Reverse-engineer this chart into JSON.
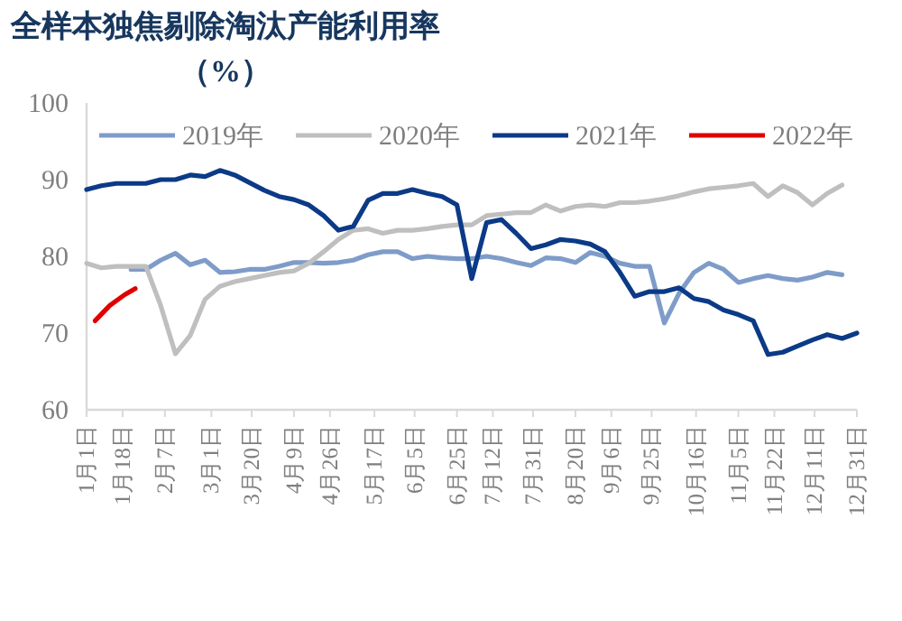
{
  "chart_data": {
    "type": "line",
    "title": "全样本独焦剔除淘汰产能利用率（%）",
    "x": [
      "--01-01",
      "--01-08",
      "--01-15",
      "--01-22",
      "--01-29",
      "--02-05",
      "--02-12",
      "--02-19",
      "--02-26",
      "--03-05",
      "--03-12",
      "--03-19",
      "--03-26",
      "--04-02",
      "--04-09",
      "--04-16",
      "--04-23",
      "--04-30",
      "--05-07",
      "--05-14",
      "--05-21",
      "--05-28",
      "--06-04",
      "--06-11",
      "--06-18",
      "--06-25",
      "--07-02",
      "--07-09",
      "--07-16",
      "--07-23",
      "--07-30",
      "--08-06",
      "--08-13",
      "--08-20",
      "--08-27",
      "--09-03",
      "--09-10",
      "--09-17",
      "--09-24",
      "--10-01",
      "--10-08",
      "--10-15",
      "--10-22",
      "--10-29",
      "--11-05",
      "--11-12",
      "--11-19",
      "--11-26",
      "--12-03",
      "--12-10",
      "--12-17",
      "--12-24",
      "--12-31"
    ],
    "series": [
      {
        "name": "2019年",
        "color": "#7f9cc9",
        "values": [
          null,
          null,
          null,
          78.3,
          78.3,
          79.5,
          80.4,
          78.9,
          79.5,
          77.9,
          78.0,
          78.3,
          78.3,
          78.7,
          79.2,
          79.2,
          79.1,
          79.2,
          79.5,
          80.2,
          80.6,
          80.6,
          79.7,
          80.0,
          79.8,
          79.7,
          79.7,
          80.0,
          79.7,
          79.2,
          78.8,
          79.8,
          79.7,
          79.2,
          80.5,
          80.0,
          79.1,
          78.7,
          78.7,
          71.3,
          75.2,
          77.9,
          79.1,
          78.3,
          76.6,
          77.1,
          77.5,
          77.1,
          76.9,
          77.3,
          77.9,
          77.6,
          null
        ]
      },
      {
        "name": "2020年",
        "color": "#bfbfbf",
        "values": [
          79.1,
          78.5,
          78.7,
          78.7,
          78.7,
          73.6,
          67.3,
          69.7,
          74.4,
          76.1,
          76.7,
          77.1,
          77.5,
          77.9,
          78.1,
          79.1,
          80.6,
          82.2,
          83.4,
          83.6,
          83.0,
          83.4,
          83.4,
          83.6,
          83.9,
          84.1,
          84.1,
          85.3,
          85.5,
          85.7,
          85.7,
          86.7,
          85.9,
          86.5,
          86.7,
          86.5,
          87.0,
          87.0,
          87.2,
          87.5,
          87.9,
          88.4,
          88.8,
          89.0,
          89.2,
          89.5,
          87.8,
          89.2,
          88.3,
          86.7,
          88.2,
          89.3,
          null
        ]
      },
      {
        "name": "2021年",
        "color": "#0b3a87",
        "values": [
          88.7,
          89.2,
          89.5,
          89.5,
          89.5,
          90.0,
          90.0,
          90.6,
          90.4,
          91.2,
          90.6,
          89.6,
          88.6,
          87.8,
          87.4,
          86.7,
          85.3,
          83.4,
          83.9,
          87.3,
          88.2,
          88.2,
          88.7,
          88.2,
          87.8,
          86.7,
          77.1,
          84.4,
          84.8,
          83.0,
          81.0,
          81.5,
          82.2,
          82.0,
          81.6,
          80.6,
          77.9,
          74.8,
          75.4,
          75.4,
          75.9,
          74.5,
          74.1,
          73.0,
          72.4,
          71.6,
          67.2,
          67.5,
          68.3,
          69.1,
          69.8,
          69.3,
          70.0
        ]
      },
      {
        "name": "2022年",
        "color": "#e00000",
        "x": [
          "--01-05",
          "--01-12",
          "--01-19",
          "--01-24"
        ],
        "values": [
          71.6,
          73.6,
          75.0,
          75.8
        ]
      }
    ],
    "xlim": [
      "--01-01",
      "--12-31"
    ],
    "xticks": [
      {
        "value": "--01-01",
        "label": "1月1日"
      },
      {
        "value": "--01-18",
        "label": "1月18日"
      },
      {
        "value": "--02-07",
        "label": "2月7日"
      },
      {
        "value": "--03-01",
        "label": "3月1日"
      },
      {
        "value": "--03-20",
        "label": "3月20日"
      },
      {
        "value": "--04-09",
        "label": "4月9日"
      },
      {
        "value": "--04-26",
        "label": "4月26日"
      },
      {
        "value": "--05-17",
        "label": "5月17日"
      },
      {
        "value": "--06-05",
        "label": "6月5日"
      },
      {
        "value": "--06-25",
        "label": "6月25日"
      },
      {
        "value": "--07-12",
        "label": "7月12日"
      },
      {
        "value": "--07-31",
        "label": "7月31日"
      },
      {
        "value": "--08-20",
        "label": "8月20日"
      },
      {
        "value": "--09-06",
        "label": "9月6日"
      },
      {
        "value": "--09-25",
        "label": "9月25日"
      },
      {
        "value": "--10-16",
        "label": "10月16日"
      },
      {
        "value": "--11-05",
        "label": "11月5日"
      },
      {
        "value": "--11-22",
        "label": "11月22日"
      },
      {
        "value": "--12-11",
        "label": "12月11日"
      },
      {
        "value": "--12-31",
        "label": "12月31日"
      }
    ],
    "ylim": [
      60,
      100
    ],
    "yticks": [
      60,
      70,
      80,
      90,
      100
    ],
    "legend": "top",
    "grid": false,
    "marker": "none",
    "line_style": "solid"
  }
}
